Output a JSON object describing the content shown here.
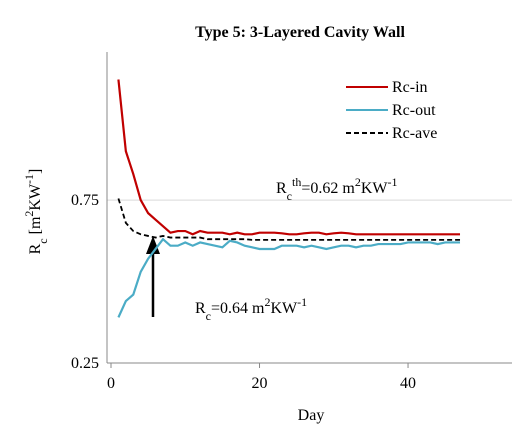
{
  "chart_data": {
    "type": "line",
    "title": "Type 5: 3-Layered Cavity Wall",
    "xlabel": "Day",
    "ylabel_parts": [
      {
        "t": "R",
        "pos": "base"
      },
      {
        "t": "c",
        "pos": "sub"
      },
      {
        "t": " [m",
        "pos": "base"
      },
      {
        "t": "2",
        "pos": "sup"
      },
      {
        "t": "KW",
        "pos": "base"
      },
      {
        "t": "-1",
        "pos": "sup"
      },
      {
        "t": "]",
        "pos": "base"
      }
    ],
    "annotations": [
      {
        "parts": [
          {
            "t": "R",
            "pos": "base"
          },
          {
            "t": "c",
            "pos": "sub"
          },
          {
            "t": "th",
            "pos": "sup"
          },
          {
            "t": "=0.62 m",
            "pos": "base"
          },
          {
            "t": "2",
            "pos": "sup"
          },
          {
            "t": "KW",
            "pos": "base"
          },
          {
            "t": "-1",
            "pos": "sup"
          }
        ]
      },
      {
        "parts": [
          {
            "t": "R",
            "pos": "base"
          },
          {
            "t": "c",
            "pos": "sub"
          },
          {
            "t": "=0.64 m",
            "pos": "base"
          },
          {
            "t": "2",
            "pos": "sup"
          },
          {
            "t": "KW",
            "pos": "base"
          },
          {
            "t": "-1",
            "pos": "sup"
          }
        ]
      }
    ],
    "x": [
      1,
      2,
      3,
      4,
      5,
      6,
      7,
      8,
      9,
      10,
      11,
      12,
      13,
      14,
      15,
      16,
      17,
      18,
      19,
      20,
      21,
      22,
      23,
      24,
      25,
      26,
      27,
      28,
      29,
      30,
      31,
      32,
      33,
      34,
      35,
      36,
      37,
      38,
      39,
      40,
      41,
      42,
      43,
      44,
      45,
      46,
      47
    ],
    "series": [
      {
        "name": "Rc-in",
        "color": "#c00000",
        "dash": false,
        "values": [
          1.12,
          0.9,
          0.83,
          0.75,
          0.71,
          0.69,
          0.67,
          0.65,
          0.655,
          0.655,
          0.645,
          0.655,
          0.65,
          0.65,
          0.65,
          0.645,
          0.65,
          0.645,
          0.645,
          0.65,
          0.65,
          0.65,
          0.648,
          0.645,
          0.645,
          0.648,
          0.65,
          0.65,
          0.645,
          0.648,
          0.65,
          0.648,
          0.645,
          0.645,
          0.645,
          0.645,
          0.645,
          0.645,
          0.645,
          0.645,
          0.645,
          0.645,
          0.645,
          0.645,
          0.645,
          0.645,
          0.645
        ]
      },
      {
        "name": "Rc-out",
        "color": "#4bacc6",
        "dash": false,
        "values": [
          0.39,
          0.44,
          0.46,
          0.53,
          0.57,
          0.6,
          0.63,
          0.61,
          0.61,
          0.62,
          0.61,
          0.62,
          0.615,
          0.61,
          0.605,
          0.625,
          0.62,
          0.61,
          0.605,
          0.6,
          0.6,
          0.6,
          0.61,
          0.61,
          0.61,
          0.605,
          0.61,
          0.605,
          0.6,
          0.605,
          0.61,
          0.61,
          0.605,
          0.61,
          0.61,
          0.615,
          0.615,
          0.615,
          0.615,
          0.62,
          0.62,
          0.62,
          0.62,
          0.615,
          0.62,
          0.62,
          0.62
        ]
      },
      {
        "name": "Rc-ave",
        "color": "#000000",
        "dash": true,
        "values": [
          0.755,
          0.68,
          0.655,
          0.645,
          0.64,
          0.635,
          0.64,
          0.635,
          0.635,
          0.635,
          0.635,
          0.635,
          0.63,
          0.63,
          0.63,
          0.63,
          0.63,
          0.63,
          0.628,
          0.628,
          0.628,
          0.628,
          0.628,
          0.628,
          0.628,
          0.628,
          0.628,
          0.628,
          0.628,
          0.628,
          0.628,
          0.628,
          0.628,
          0.628,
          0.628,
          0.628,
          0.628,
          0.628,
          0.628,
          0.628,
          0.628,
          0.628,
          0.628,
          0.628,
          0.628,
          0.628,
          0.628
        ]
      }
    ],
    "xlim": [
      0,
      54
    ],
    "xticks": [
      0,
      20,
      40
    ],
    "ylim": [
      0.25,
      1.18
    ],
    "yticks": [
      0.25,
      0.75
    ],
    "grid": true
  }
}
